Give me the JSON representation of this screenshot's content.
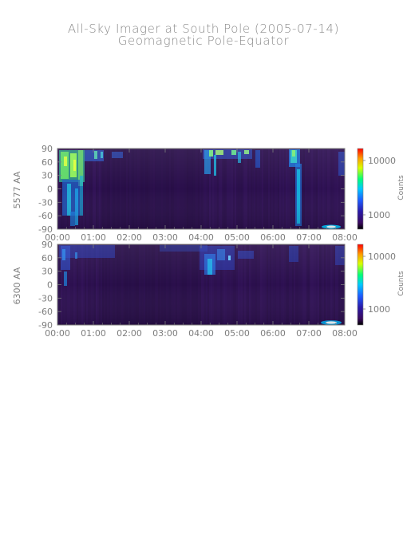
{
  "title": "All-Sky Imager at South Pole (2005-07-14)",
  "subtitle": "Geomagnetic Pole-Equator",
  "colors": {
    "background": "#ffffff",
    "axis": "#7d7d7d",
    "text": "#8a8a8a",
    "plot_background": "#2a0f45"
  },
  "chart_data": [
    {
      "type": "heatmap",
      "ylabel": "5577 AA",
      "colorbar_label": "Counts",
      "colorbar_ticks": [
        "10000",
        "1000"
      ],
      "colorbar_scale": "log",
      "x_tick_labels": [
        "00:00",
        "01:00",
        "02:00",
        "03:00",
        "04:00",
        "05:00",
        "06:00",
        "07:00",
        "08:00"
      ],
      "y_tick_labels": [
        "90",
        "60",
        "30",
        "0",
        "-30",
        "-60",
        "-90"
      ],
      "ylim": [
        -90,
        90
      ],
      "xlim_hours": [
        0,
        8
      ],
      "grid": false
    },
    {
      "type": "heatmap",
      "ylabel": "6300 AA",
      "colorbar_label": "Counts",
      "colorbar_ticks": [
        "10000",
        "1000"
      ],
      "colorbar_scale": "log",
      "x_tick_labels": [
        "00:00",
        "01:00",
        "02:00",
        "03:00",
        "04:00",
        "05:00",
        "06:00",
        "07:00",
        "08:00"
      ],
      "y_tick_labels": [
        "90",
        "60",
        "30",
        "0",
        "-30",
        "-60",
        "-90"
      ],
      "ylim": [
        -90,
        90
      ],
      "xlim_hours": [
        0,
        8
      ],
      "grid": false
    }
  ]
}
